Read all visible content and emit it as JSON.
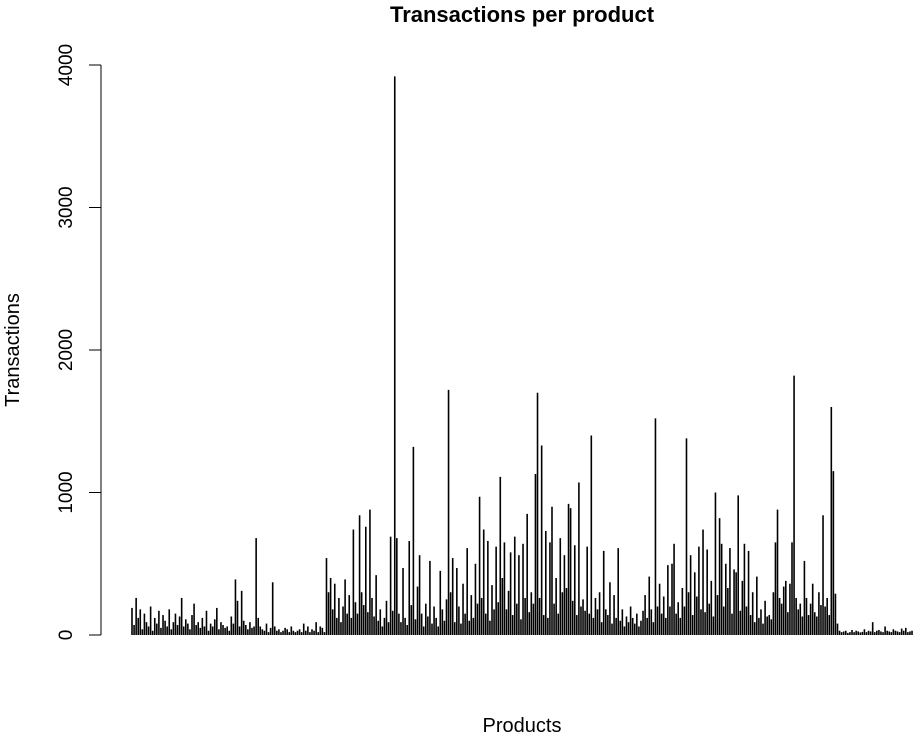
{
  "chart_data": {
    "type": "line",
    "title": "Transactions per product",
    "xlabel": "Products",
    "ylabel": "Transactions",
    "ylim": [
      0,
      4000
    ],
    "y_ticks": [
      "0",
      "1000",
      "2000",
      "3000",
      "4000"
    ],
    "x_ticks": [],
    "grid": false,
    "legend": "none",
    "plot_style": "vertical-lines",
    "line_color": "#000000",
    "series": [
      {
        "values": [
          190,
          70,
          260,
          120,
          180,
          40,
          150,
          90,
          60,
          200,
          30,
          120,
          80,
          170,
          50,
          140,
          100,
          60,
          180,
          40,
          90,
          150,
          70,
          130,
          260,
          60,
          110,
          80,
          40,
          140,
          220,
          70,
          90,
          50,
          120,
          60,
          170,
          30,
          80,
          60,
          110,
          190,
          40,
          90,
          70,
          50,
          60,
          30,
          130,
          80,
          390,
          240,
          60,
          310,
          100,
          70,
          40,
          90,
          50,
          60,
          680,
          120,
          60,
          40,
          30,
          80,
          20,
          50,
          370,
          60,
          30,
          40,
          20,
          30,
          50,
          40,
          20,
          60,
          30,
          20,
          30,
          40,
          20,
          80,
          30,
          60,
          20,
          40,
          30,
          90,
          20,
          60,
          50,
          20,
          540,
          300,
          400,
          180,
          360,
          120,
          260,
          90,
          200,
          390,
          150,
          280,
          120,
          740,
          230,
          150,
          840,
          300,
          210,
          760,
          160,
          880,
          260,
          130,
          420,
          100,
          180,
          60,
          120,
          240,
          90,
          690,
          170,
          3920,
          680,
          150,
          90,
          470,
          120,
          70,
          660,
          210,
          1320,
          110,
          340,
          560,
          150,
          60,
          220,
          130,
          520,
          80,
          200,
          120,
          60,
          450,
          180,
          100,
          250,
          1720,
          300,
          540,
          90,
          470,
          200,
          80,
          360,
          150,
          610,
          100,
          280,
          120,
          500,
          220,
          970,
          260,
          740,
          150,
          660,
          100,
          350,
          180,
          620,
          230,
          1110,
          400,
          650,
          180,
          310,
          580,
          140,
          690,
          220,
          560,
          110,
          640,
          260,
          850,
          160,
          300,
          220,
          1130,
          1700,
          260,
          1330,
          140,
          730,
          120,
          650,
          900,
          220,
          400,
          150,
          680,
          300,
          560,
          330,
          920,
          890,
          240,
          630,
          140,
          1070,
          200,
          250,
          170,
          620,
          150,
          1400,
          120,
          260,
          180,
          300,
          90,
          590,
          180,
          140,
          370,
          80,
          280,
          120,
          610,
          100,
          180,
          60,
          130,
          90,
          200,
          120,
          80,
          150,
          60,
          100,
          170,
          280,
          120,
          410,
          180,
          90,
          1520,
          200,
          360,
          150,
          270,
          120,
          490,
          200,
          500,
          640,
          150,
          230,
          120,
          330,
          200,
          1380,
          300,
          560,
          140,
          440,
          270,
          620,
          180,
          740,
          160,
          600,
          220,
          380,
          130,
          1000,
          280,
          820,
          640,
          200,
          500,
          330,
          610,
          150,
          460,
          440,
          980,
          170,
          380,
          640,
          200,
          590,
          140,
          300,
          90,
          410,
          120,
          180,
          80,
          240,
          130,
          140,
          110,
          300,
          650,
          880,
          260,
          220,
          340,
          380,
          160,
          360,
          650,
          1820,
          260,
          180,
          220,
          130,
          520,
          260,
          140,
          220,
          360,
          160,
          130,
          300,
          210,
          840,
          200,
          260,
          140,
          1600,
          1150,
          290,
          80,
          30,
          20,
          25,
          30,
          15,
          20,
          35,
          20,
          30,
          25,
          18,
          22,
          40,
          20,
          30,
          25,
          90,
          20,
          30,
          35,
          25,
          20,
          60,
          30,
          25,
          20,
          40,
          30,
          25,
          20,
          45,
          30,
          50,
          20,
          25,
          30
        ]
      }
    ]
  }
}
